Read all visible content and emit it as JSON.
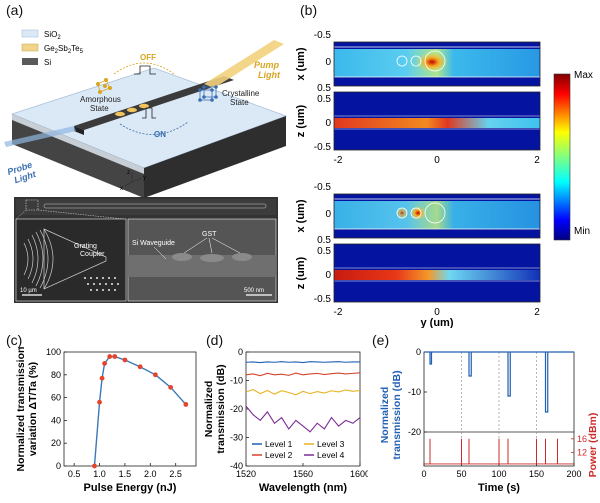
{
  "panel_labels": {
    "a": "(a)",
    "b": "(b)",
    "c": "(c)",
    "d": "(d)",
    "e": "(e)"
  },
  "panel_a": {
    "legend": [
      {
        "label": "SiO",
        "sub": "2",
        "color": "#dbe9f7"
      },
      {
        "label": "Ge",
        "sub": "2",
        "label2": "Sb",
        "sub2": "2",
        "label3": "Te",
        "sub3": "5",
        "color": "#f0d48a"
      },
      {
        "label": "Si",
        "color": "#5a5a5a"
      }
    ],
    "off_label": "OFF",
    "on_label": "ON",
    "amorphous": [
      "Amorphous",
      "State"
    ],
    "crystalline": [
      "Crystalline",
      "State"
    ],
    "pump": [
      "Pump",
      "Light"
    ],
    "probe": [
      "Probe",
      "Light"
    ],
    "axes": {
      "x": "x",
      "y": "y",
      "z": "z"
    },
    "sem": {
      "grating": [
        "Grating",
        "Coupler"
      ],
      "waveguide": "Si Waveguide",
      "gst": "GST",
      "scale1": "10 µm",
      "scale2": "500 nm"
    }
  },
  "panel_b": {
    "top_ylabel": "x (um)",
    "bottom_ylabel": "z (um)",
    "x_ticks_top": [
      "-0.5",
      "0",
      "0.5"
    ],
    "z_ticks": [
      "0.5",
      "0",
      "-0.5"
    ],
    "x_ticks": [
      "-2",
      "0",
      "2"
    ],
    "xlabel": "y (um)",
    "colorbar": {
      "max": "Max",
      "min": "Min"
    }
  },
  "chart_data": [
    {
      "type": "line",
      "panel": "c",
      "x": [
        0.9,
        1.0,
        1.05,
        1.1,
        1.2,
        1.3,
        1.5,
        1.8,
        2.1,
        2.4,
        2.7
      ],
      "y": [
        0,
        56,
        77,
        90,
        96,
        96,
        93,
        87,
        80,
        69,
        54
      ],
      "xlabel": "Pulse Energy (nJ)",
      "ylabel": [
        "Normalized transmission",
        "variation ΔT/Ta (%)"
      ],
      "xlim": [
        0.3,
        2.9
      ],
      "ylim": [
        0,
        100
      ],
      "xticks": [
        "0.5",
        "1.0",
        "1.5",
        "2.0",
        "2.5",
        "3.0"
      ],
      "yticks": [
        "0",
        "20",
        "40",
        "60",
        "80",
        "100"
      ],
      "colors": {
        "line": "#3a78b8",
        "marker": "#e5432b"
      }
    },
    {
      "type": "line",
      "panel": "d",
      "xlabel": "Wavelength (nm)",
      "ylabel": [
        "Normalized",
        "transmission (dB)"
      ],
      "xlim": [
        1520,
        1600
      ],
      "ylim": [
        -40,
        0
      ],
      "xticks": [
        "1520",
        "1560",
        "1600"
      ],
      "yticks": [
        "0",
        "-10",
        "-20",
        "-30",
        "-40"
      ],
      "series": [
        {
          "name": "Level 1",
          "color": "#1f5fb4",
          "values": [
            -3.6,
            -3.5,
            -3.7,
            -3.5,
            -3.6,
            -3.4,
            -3.6,
            -3.5,
            -3.7,
            -3.4,
            -3.5,
            -3.6,
            -3.5,
            -3.4,
            -3.6,
            -3.5,
            -3.5
          ]
        },
        {
          "name": "Level 2",
          "color": "#d4442b",
          "values": [
            -8,
            -7.7,
            -8.3,
            -7.5,
            -8,
            -7.8,
            -8.2,
            -7.4,
            -8,
            -7.7,
            -7.5,
            -7.9,
            -7.6,
            -7.4,
            -7.7,
            -7.5,
            -7.3
          ]
        },
        {
          "name": "Level 3",
          "color": "#e6b323",
          "values": [
            -14,
            -13.2,
            -14.6,
            -13.5,
            -14.8,
            -13.6,
            -14.2,
            -15,
            -13.8,
            -14.6,
            -13.9,
            -14.4,
            -13.6,
            -14,
            -13.3,
            -13.8,
            -13.5
          ]
        },
        {
          "name": "Level 4",
          "color": "#7b2d97",
          "values": [
            -19,
            -22,
            -24,
            -21,
            -25,
            -23,
            -27,
            -24,
            -26,
            -28,
            -25,
            -27,
            -23,
            -26,
            -24,
            -25,
            -23
          ]
        }
      ],
      "legend_position": "bottom"
    },
    {
      "type": "line",
      "panel": "e",
      "xlabel": "Time (s)",
      "ylabel_top": [
        "Normalized",
        "transmission (dB)"
      ],
      "ylabel_bottom": "Power (dBm)",
      "xlim": [
        0,
        200
      ],
      "xticks": [
        "0",
        "50",
        "100",
        "150",
        "200"
      ],
      "ylim_top": [
        -20,
        0
      ],
      "yticks_top": [
        "0",
        "-10",
        "-20"
      ],
      "ylim_bottom": [
        8,
        18
      ],
      "yticks_bottom": [
        "16",
        "12"
      ],
      "dashed_at": [
        50,
        100,
        150
      ],
      "transmission": {
        "color": "#1f5fb4",
        "x": [
          0,
          8,
          8,
          10,
          10,
          50,
          50,
          60,
          60,
          63,
          63,
          100,
          100,
          112,
          112,
          115,
          115,
          150,
          150,
          162,
          162,
          165,
          165,
          200
        ],
        "y": [
          0,
          0,
          -3,
          -3,
          0,
          0,
          0,
          0,
          -6,
          -6,
          0,
          0,
          0,
          0,
          -11,
          -11,
          0,
          0,
          0,
          0,
          -15,
          -15,
          0,
          0
        ]
      },
      "pulses": {
        "color": "#cc2b2b",
        "x": [
          8,
          50,
          60,
          100,
          112,
          150,
          162,
          178
        ],
        "y": [
          16,
          16,
          16,
          16,
          16,
          16,
          16,
          16
        ]
      }
    }
  ]
}
